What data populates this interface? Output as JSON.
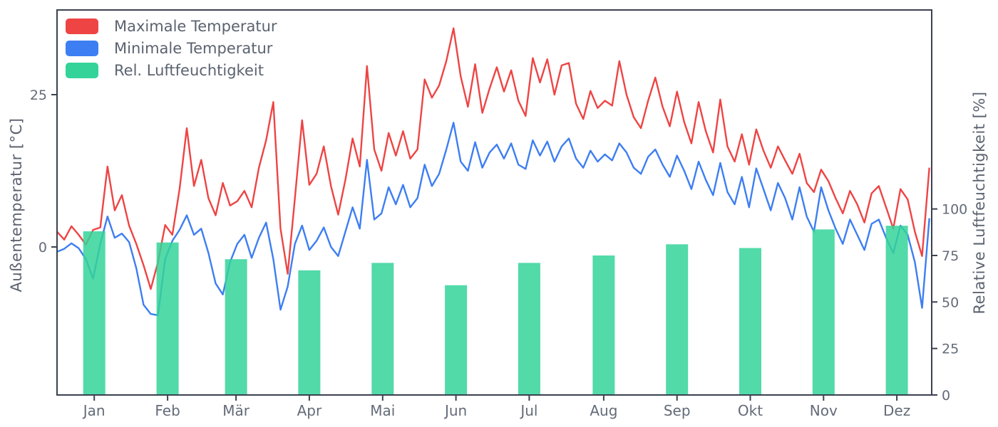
{
  "figure": {
    "background": "#ffffff",
    "text_color": "#5b6370",
    "tick_color": "#636b78",
    "spine_color": "#3a4150"
  },
  "chart_data": {
    "type": "line+bar",
    "title": "",
    "x_unit": "day of year (daily weather data, sampled every 3 days)",
    "months": [
      "Jan",
      "Feb",
      "Mär",
      "Apr",
      "Mai",
      "Jun",
      "Jul",
      "Aug",
      "Sep",
      "Okt",
      "Nov",
      "Dez"
    ],
    "axes": {
      "left": {
        "label": "Außentemperatur [°C]",
        "ticks": [
          0,
          25
        ],
        "range": [
          -24.3,
          38.9
        ]
      },
      "right": {
        "label": "Relative Luftfeuchtigkeit [%]",
        "ticks": [
          0,
          25,
          50,
          75,
          100
        ],
        "range": [
          0,
          207
        ]
      },
      "bottom": {
        "tick_labels": [
          "Jan",
          "Feb",
          "Mär",
          "Apr",
          "Mai",
          "Jun",
          "Jul",
          "Aug",
          "Sep",
          "Okt",
          "Nov",
          "Dez"
        ]
      }
    },
    "legend": {
      "position": "upper left",
      "entries": [
        {
          "label": "Maximale Temperatur",
          "color": "#ee4444"
        },
        {
          "label": "Minimale Temperatur",
          "color": "#3d7ef2"
        },
        {
          "label": "Rel. Luftfeuchtigkeit",
          "color": "#34d399"
        }
      ]
    },
    "series": [
      {
        "name": "Maximale Temperatur",
        "type": "line",
        "axis": "left",
        "color": "#ee4444",
        "line_width": 2.4,
        "day_step": 3,
        "values": [
          2.5,
          1.2,
          3.4,
          2.0,
          0.4,
          2.8,
          3.2,
          13.2,
          6.0,
          8.5,
          3.5,
          0.5,
          -3.0,
          -6.9,
          -2.5,
          3.6,
          2.0,
          9.5,
          19.5,
          10.0,
          14.3,
          8.0,
          5.2,
          10.5,
          6.8,
          7.5,
          9.2,
          6.5,
          13.0,
          17.5,
          23.8,
          3.0,
          -4.4,
          8.0,
          20.8,
          10.2,
          12.0,
          16.5,
          10.0,
          5.3,
          11.0,
          17.8,
          13.2,
          29.7,
          16.0,
          12.5,
          18.7,
          15.0,
          19.0,
          14.5,
          16.0,
          27.5,
          24.5,
          26.5,
          30.5,
          35.9,
          28.0,
          23.0,
          30.0,
          22.0,
          26.0,
          29.5,
          25.5,
          29.0,
          24.0,
          21.5,
          31.0,
          27.0,
          30.8,
          25.0,
          29.8,
          30.2,
          23.5,
          21.0,
          25.6,
          22.8,
          24.0,
          23.2,
          30.5,
          25.0,
          21.3,
          19.5,
          24.0,
          27.8,
          23.0,
          19.8,
          25.5,
          20.5,
          17.0,
          23.8,
          19.0,
          15.5,
          24.2,
          16.5,
          14.0,
          18.5,
          13.5,
          19.3,
          15.8,
          13.0,
          16.5,
          14.2,
          12.0,
          15.3,
          10.5,
          9.0,
          12.7,
          10.8,
          8.0,
          5.5,
          9.2,
          7.0,
          4.0,
          8.8,
          10.0,
          6.5,
          3.0,
          9.5,
          7.8,
          2.5,
          -1.5,
          12.9
        ]
      },
      {
        "name": "Minimale Temperatur",
        "type": "line",
        "axis": "left",
        "color": "#3d7ef2",
        "line_width": 2.4,
        "day_step": 3,
        "values": [
          -0.8,
          -0.3,
          0.6,
          -0.2,
          -2.0,
          -5.2,
          0.5,
          5.0,
          1.5,
          2.2,
          0.8,
          -3.5,
          -9.5,
          -11.0,
          -11.2,
          -2.0,
          1.0,
          2.8,
          5.2,
          2.0,
          3.0,
          -1.0,
          -6.0,
          -7.8,
          -2.5,
          0.5,
          2.0,
          -1.8,
          1.5,
          4.0,
          -2.0,
          -10.3,
          -6.5,
          0.5,
          3.5,
          -0.5,
          1.0,
          3.2,
          0.0,
          -1.5,
          2.5,
          6.5,
          3.0,
          14.3,
          4.5,
          5.5,
          9.8,
          7.0,
          10.2,
          6.5,
          8.0,
          13.5,
          10.0,
          12.0,
          16.0,
          20.4,
          14.0,
          12.5,
          17.2,
          13.0,
          15.5,
          16.8,
          14.5,
          17.0,
          13.5,
          12.8,
          17.5,
          15.0,
          17.3,
          14.0,
          16.5,
          17.8,
          14.5,
          13.0,
          15.8,
          14.0,
          15.2,
          14.2,
          17.0,
          15.5,
          13.0,
          12.0,
          14.8,
          16.0,
          13.5,
          11.5,
          15.0,
          12.5,
          9.5,
          14.0,
          11.0,
          8.5,
          13.8,
          9.0,
          7.0,
          11.5,
          6.5,
          12.9,
          9.5,
          6.0,
          10.5,
          8.0,
          4.5,
          9.8,
          5.0,
          2.5,
          9.8,
          6.0,
          3.0,
          0.5,
          4.5,
          2.0,
          -0.5,
          3.8,
          4.5,
          1.5,
          -1.0,
          3.5,
          2.0,
          -2.5,
          -10.0,
          4.6
        ]
      },
      {
        "name": "Rel. Luftfeuchtigkeit",
        "type": "bar",
        "axis": "right",
        "color": "#34d399",
        "bar_opacity": 0.85,
        "categories": [
          "Jan",
          "Feb",
          "Mär",
          "Apr",
          "Mai",
          "Jun",
          "Jul",
          "Aug",
          "Sep",
          "Okt",
          "Nov",
          "Dez"
        ],
        "values": [
          88,
          82,
          73,
          67,
          71,
          59,
          71,
          75,
          81,
          79,
          89,
          91
        ]
      }
    ]
  }
}
